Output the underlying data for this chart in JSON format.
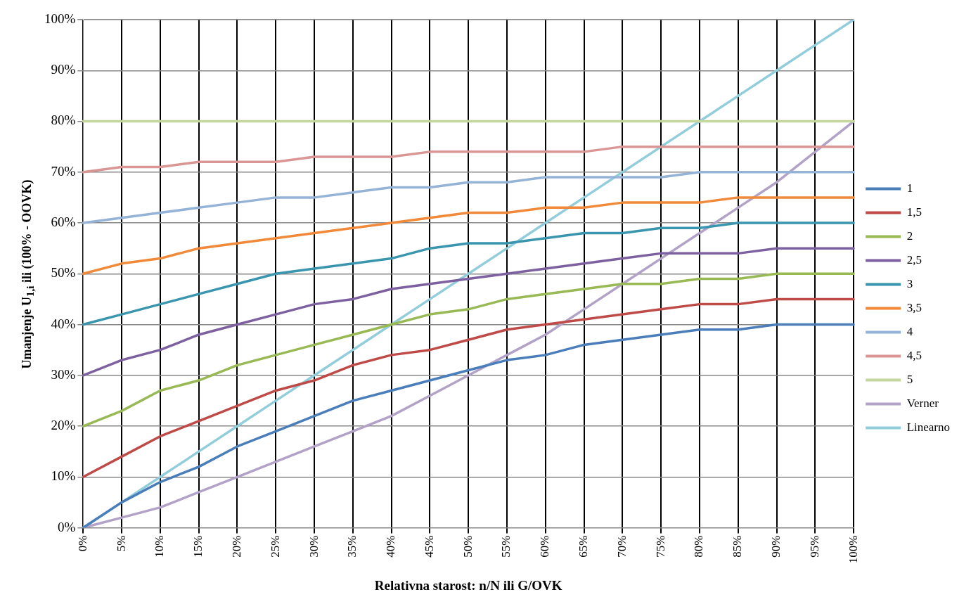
{
  "chart_data": {
    "type": "line",
    "xlabel": "Relativna starost: n/N ili G/OVK",
    "ylabel": "Umanjenje U$_{1,i}$ ili (100% - OOVK)",
    "categories": [
      "0%",
      "5%",
      "10%",
      "15%",
      "20%",
      "25%",
      "30%",
      "35%",
      "40%",
      "45%",
      "50%",
      "55%",
      "60%",
      "65%",
      "70%",
      "75%",
      "80%",
      "85%",
      "90%",
      "95%",
      "100%"
    ],
    "ylim": [
      0,
      100
    ],
    "yticks": [
      {
        "value": 0,
        "label": "0%"
      },
      {
        "value": 10,
        "label": "10%"
      },
      {
        "value": 20,
        "label": "20%"
      },
      {
        "value": 30,
        "label": "30%"
      },
      {
        "value": 40,
        "label": "40%"
      },
      {
        "value": 50,
        "label": "50%"
      },
      {
        "value": 60,
        "label": "60%"
      },
      {
        "value": 70,
        "label": "70%"
      },
      {
        "value": 80,
        "label": "80%"
      },
      {
        "value": 90,
        "label": "90%"
      },
      {
        "value": 100,
        "label": "100%"
      }
    ],
    "grid": true,
    "legend": "right",
    "marker": "none",
    "line_style": "solid",
    "series": [
      {
        "name": "1",
        "color": "#4a7ebb",
        "values": [
          0,
          5,
          9,
          12,
          16,
          19,
          22,
          25,
          27,
          29,
          31,
          33,
          34,
          36,
          37,
          38,
          39,
          39,
          40,
          40,
          40
        ]
      },
      {
        "name": "1,5",
        "color": "#be4b48",
        "values": [
          10,
          14,
          18,
          21,
          24,
          27,
          29,
          32,
          34,
          35,
          37,
          39,
          40,
          41,
          42,
          43,
          44,
          44,
          45,
          45,
          45
        ]
      },
      {
        "name": "2",
        "color": "#98b954",
        "values": [
          20,
          23,
          27,
          29,
          32,
          34,
          36,
          38,
          40,
          42,
          43,
          45,
          46,
          47,
          48,
          48,
          49,
          49,
          50,
          50,
          50
        ]
      },
      {
        "name": "2,5",
        "color": "#7d60a0",
        "values": [
          30,
          33,
          35,
          38,
          40,
          42,
          44,
          45,
          47,
          48,
          49,
          50,
          51,
          52,
          53,
          54,
          54,
          54,
          55,
          55,
          55
        ]
      },
      {
        "name": "3",
        "color": "#3a95ae",
        "values": [
          40,
          42,
          44,
          46,
          48,
          50,
          51,
          52,
          53,
          55,
          56,
          56,
          57,
          58,
          58,
          59,
          59,
          60,
          60,
          60,
          60
        ]
      },
      {
        "name": "3,5",
        "color": "#f08a3a",
        "values": [
          50,
          52,
          53,
          55,
          56,
          57,
          58,
          59,
          60,
          61,
          62,
          62,
          63,
          63,
          64,
          64,
          64,
          65,
          65,
          65,
          65
        ]
      },
      {
        "name": "4",
        "color": "#95b3d7",
        "values": [
          60,
          61,
          62,
          63,
          64,
          65,
          65,
          66,
          67,
          67,
          68,
          68,
          69,
          69,
          69,
          69,
          70,
          70,
          70,
          70,
          70
        ]
      },
      {
        "name": "4,5",
        "color": "#d99694",
        "values": [
          70,
          71,
          71,
          72,
          72,
          72,
          73,
          73,
          73,
          74,
          74,
          74,
          74,
          74,
          75,
          75,
          75,
          75,
          75,
          75,
          75
        ]
      },
      {
        "name": "5",
        "color": "#c3d69b",
        "values": [
          80,
          80,
          80,
          80,
          80,
          80,
          80,
          80,
          80,
          80,
          80,
          80,
          80,
          80,
          80,
          80,
          80,
          80,
          80,
          80,
          80
        ]
      },
      {
        "name": "Verner",
        "color": "#b2a2c7",
        "values": [
          0,
          2,
          4,
          7,
          10,
          13,
          16,
          19,
          22,
          26,
          30,
          34,
          38,
          43,
          48,
          53,
          58,
          63,
          68,
          74,
          80
        ]
      },
      {
        "name": "Linearno",
        "color": "#92cddc",
        "values": [
          0,
          5,
          10,
          15,
          20,
          25,
          30,
          35,
          40,
          45,
          50,
          55,
          60,
          65,
          70,
          75,
          80,
          85,
          90,
          95,
          100
        ]
      }
    ]
  }
}
